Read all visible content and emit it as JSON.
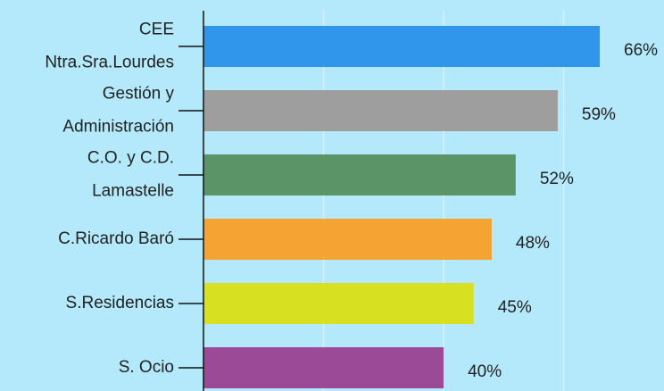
{
  "chart_data": {
    "type": "bar",
    "orientation": "horizontal",
    "categories": [
      "CEE\nNtra.Sra.Lourdes",
      "Gestión y\nAdministración",
      "C.O. y C.D.\nLamastelle",
      "C.Ricardo Baró",
      "S.Residencias",
      "S. Ocio"
    ],
    "values": [
      66,
      59,
      52,
      48,
      45,
      40
    ],
    "value_labels": [
      "66%",
      "59%",
      "52%",
      "48%",
      "45%",
      "40%"
    ],
    "colors": [
      "#2f96ec",
      "#9e9e9e",
      "#5a9467",
      "#f5a333",
      "#d8e022",
      "#9b4a97"
    ],
    "xlim": [
      0,
      76.7
    ],
    "xticks": [
      0,
      20,
      40,
      60
    ],
    "grid": true
  }
}
